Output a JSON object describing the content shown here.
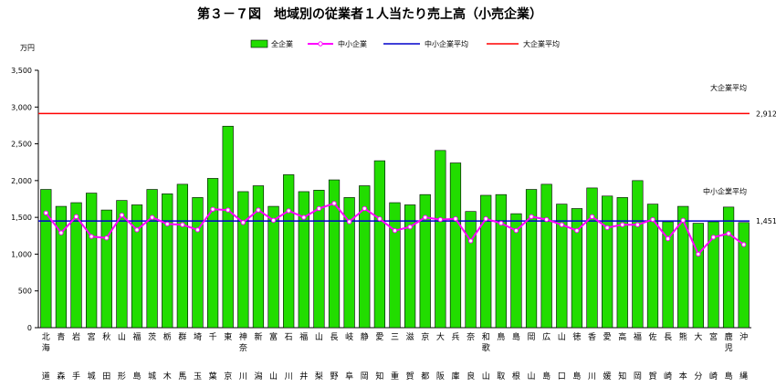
{
  "chart_data": {
    "type": "bar",
    "title": "第３－７図　地域別の従業者１人当たり売上高（小売企業）",
    "unit_label": "万円",
    "ylim": [
      0,
      3500
    ],
    "yticks": [
      0,
      500,
      1000,
      1500,
      2000,
      2500,
      3000,
      3500
    ],
    "ytick_labels": [
      "0",
      "500",
      "1,000",
      "1,500",
      "2,000",
      "2,500",
      "3,000",
      "3,500"
    ],
    "legend": {
      "placement": "top",
      "entries": [
        "全企業",
        "中小企業",
        "中小企業平均",
        "大企業平均"
      ]
    },
    "categories": [
      "北海道",
      "青森",
      "岩手",
      "宮城",
      "秋田",
      "山形",
      "福島",
      "茨城",
      "栃木",
      "群馬",
      "埼玉",
      "千葉",
      "東京",
      "神奈川",
      "新潟",
      "富山",
      "石川",
      "福井",
      "山梨",
      "長野",
      "岐阜",
      "静岡",
      "愛知",
      "三重",
      "滋賀",
      "京都",
      "大阪",
      "兵庫",
      "奈良",
      "和歌山",
      "鳥取",
      "島根",
      "岡山",
      "広島",
      "山口",
      "徳島",
      "香川",
      "愛媛",
      "高知",
      "福岡",
      "佐賀",
      "長崎",
      "熊本",
      "大分",
      "宮崎",
      "鹿児島",
      "沖縄"
    ],
    "series": [
      {
        "name": "全企業",
        "type": "bar",
        "color": "#22dd00",
        "values": [
          1880,
          1650,
          1700,
          1830,
          1600,
          1730,
          1670,
          1880,
          1820,
          1950,
          1770,
          2030,
          2740,
          1850,
          1930,
          1650,
          2080,
          1850,
          1870,
          2010,
          1770,
          1930,
          2270,
          1700,
          1670,
          1810,
          2410,
          2240,
          1580,
          1800,
          1810,
          1550,
          1880,
          1950,
          1680,
          1620,
          1900,
          1790,
          1770,
          2000,
          1680,
          1440,
          1650,
          1420,
          1440,
          1640,
          1430
        ]
      },
      {
        "name": "中小企業",
        "type": "line",
        "color": "#ff00ff",
        "values": [
          1560,
          1290,
          1510,
          1240,
          1220,
          1530,
          1330,
          1500,
          1410,
          1400,
          1330,
          1610,
          1600,
          1430,
          1600,
          1460,
          1590,
          1500,
          1620,
          1690,
          1440,
          1620,
          1480,
          1320,
          1370,
          1500,
          1470,
          1480,
          1180,
          1480,
          1420,
          1320,
          1510,
          1470,
          1400,
          1320,
          1510,
          1360,
          1400,
          1400,
          1470,
          1210,
          1460,
          1000,
          1230,
          1280,
          1130
        ]
      }
    ],
    "reference_lines": [
      {
        "name": "中小企業平均",
        "value": 1451,
        "label": "1,451",
        "color": "#0000cc",
        "annotation": "中小企業平均"
      },
      {
        "name": "大企業平均",
        "value": 2912,
        "label": "2,912",
        "color": "#ff0000",
        "annotation": "大企業平均"
      }
    ]
  }
}
